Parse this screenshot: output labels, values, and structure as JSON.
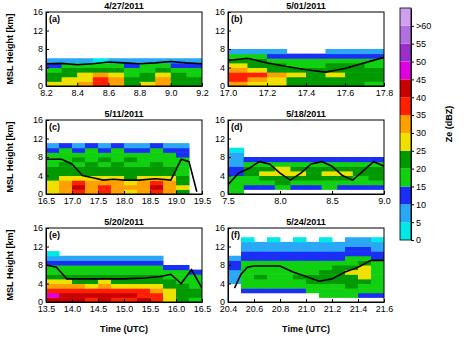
{
  "chart_data": [
    {
      "type": "heatmap",
      "title": "4/27/2011",
      "annotation": "(a)",
      "ylabel": "MSL Height [km]",
      "xlim": [
        8.2,
        9.2
      ],
      "xticks": [
        8.2,
        8.4,
        8.6,
        8.8,
        {
          "value": 9,
          "label": "9.0"
        },
        9.2
      ],
      "ylim": [
        0,
        16
      ],
      "yticks": [
        0,
        4,
        8,
        12,
        16
      ],
      "x": [
        8.25,
        8.35,
        8.45,
        8.55,
        8.65,
        8.75,
        8.85,
        8.95,
        9.05,
        9.15
      ],
      "y": [
        0.5,
        1.5,
        2.5,
        3.5,
        4.5,
        5.5
      ],
      "values": [
        [
          25,
          28,
          30,
          35,
          32,
          22,
          25,
          30,
          24,
          22
        ],
        [
          22,
          25,
          28,
          38,
          33,
          20,
          22,
          32,
          22,
          20
        ],
        [
          20,
          22,
          25,
          30,
          28,
          18,
          20,
          25,
          20,
          18
        ],
        [
          18,
          20,
          22,
          22,
          20,
          16,
          18,
          20,
          18,
          17
        ],
        [
          12,
          15,
          18,
          18,
          15,
          12,
          15,
          16,
          14,
          12
        ],
        [
          5,
          8,
          6,
          4,
          5,
          6,
          5,
          7,
          8,
          6
        ]
      ],
      "series": [
        {
          "color": "#000000",
          "x": [
            8.2,
            8.3,
            8.4,
            8.5,
            8.6,
            8.7,
            8.8,
            8.9,
            9.0,
            9.1,
            9.2
          ],
          "values": [
            4.8,
            4.9,
            4.6,
            4.8,
            5.2,
            5.0,
            4.8,
            5.0,
            5.3,
            5.0,
            4.8
          ]
        }
      ]
    },
    {
      "type": "heatmap",
      "title": "5/01/2011",
      "annotation": "(b)",
      "xlim": [
        17.0,
        17.8
      ],
      "xticks": [
        {
          "value": 17,
          "label": "17.0"
        },
        17.2,
        17.4,
        17.6,
        17.8
      ],
      "ylim": [
        0,
        16
      ],
      "yticks": [
        0,
        4,
        8,
        12,
        16
      ],
      "x": [
        17.05,
        17.15,
        17.25,
        17.35,
        17.45,
        17.55,
        17.65,
        17.75
      ],
      "y": [
        0.5,
        1.5,
        2.5,
        3.5,
        4.5,
        5.5,
        6.5,
        7.5
      ],
      "values": [
        [
          30,
          28,
          25,
          22,
          20,
          22,
          20,
          18
        ],
        [
          35,
          32,
          28,
          22,
          20,
          22,
          22,
          20
        ],
        [
          38,
          35,
          30,
          25,
          22,
          25,
          24,
          22
        ],
        [
          30,
          28,
          22,
          20,
          20,
          22,
          22,
          20
        ],
        [
          25,
          22,
          20,
          18,
          18,
          20,
          20,
          18
        ],
        [
          20,
          20,
          18,
          15,
          15,
          16,
          18,
          15
        ],
        [
          15,
          15,
          12,
          10,
          10,
          12,
          14,
          12
        ],
        [
          8,
          6,
          5,
          null,
          null,
          5,
          8,
          6
        ]
      ],
      "series": [
        {
          "color": "#000000",
          "x": [
            17.0,
            17.1,
            17.2,
            17.3,
            17.4,
            17.5,
            17.6,
            17.7,
            17.8
          ],
          "values": [
            5.5,
            6.0,
            5.0,
            4.2,
            3.5,
            3.0,
            3.8,
            5.0,
            6.2
          ]
        }
      ]
    },
    {
      "type": "heatmap",
      "title": "5/11/2011",
      "annotation": "(c)",
      "ylabel": "MSL Height [km]",
      "xlim": [
        16.5,
        19.5
      ],
      "xticks": [
        16.5,
        {
          "value": 17,
          "label": "17.0"
        },
        17.5,
        {
          "value": 18,
          "label": "18.0"
        },
        18.5,
        {
          "value": 19,
          "label": "19.0"
        },
        19.5
      ],
      "ylim": [
        0,
        16
      ],
      "yticks": [
        0,
        4,
        8,
        12,
        16
      ],
      "x": [
        16.625,
        16.875,
        17.125,
        17.375,
        17.625,
        17.875,
        18.125,
        18.375,
        18.625,
        18.875,
        19.125,
        19.375
      ],
      "y": [
        0.5,
        1.5,
        2.5,
        3.5,
        4.5,
        5.5,
        6.5,
        7.5,
        8.5,
        9.5,
        10.5
      ],
      "values": [
        [
          25,
          30,
          38,
          30,
          35,
          30,
          28,
          30,
          38,
          30,
          22,
          null
        ],
        [
          28,
          32,
          40,
          32,
          38,
          32,
          30,
          33,
          40,
          32,
          25,
          null
        ],
        [
          25,
          30,
          35,
          30,
          33,
          30,
          28,
          30,
          35,
          30,
          22,
          null
        ],
        [
          22,
          25,
          28,
          25,
          25,
          25,
          24,
          25,
          28,
          25,
          20,
          null
        ],
        [
          20,
          22,
          22,
          22,
          22,
          22,
          22,
          22,
          22,
          22,
          18,
          null
        ],
        [
          20,
          20,
          20,
          20,
          20,
          20,
          20,
          20,
          20,
          20,
          18,
          null
        ],
        [
          18,
          20,
          18,
          20,
          18,
          20,
          18,
          18,
          20,
          18,
          15,
          null
        ],
        [
          18,
          18,
          20,
          18,
          20,
          18,
          20,
          18,
          18,
          18,
          15,
          null
        ],
        [
          15,
          18,
          15,
          18,
          15,
          18,
          15,
          15,
          18,
          15,
          12,
          null
        ],
        [
          12,
          15,
          12,
          15,
          12,
          15,
          12,
          12,
          15,
          12,
          10,
          null
        ],
        [
          8,
          10,
          5,
          10,
          8,
          10,
          8,
          6,
          10,
          8,
          5,
          null
        ]
      ],
      "series": [
        {
          "color": "#000000",
          "x": [
            16.5,
            16.8,
            17.0,
            17.2,
            17.4,
            17.6,
            17.8,
            18.0,
            18.3,
            18.6,
            18.9,
            19.1,
            19.25,
            19.4
          ],
          "values": [
            7.5,
            7.5,
            6.5,
            4.0,
            3.5,
            3.0,
            3.2,
            3.0,
            3.0,
            3.3,
            3.0,
            7.5,
            7.0,
            0.5
          ]
        }
      ]
    },
    {
      "type": "heatmap",
      "title": "5/18/2011",
      "annotation": "(d)",
      "xlim": [
        7.5,
        9.0
      ],
      "xticks": [
        7.5,
        {
          "value": 8,
          "label": "8.0"
        },
        8.5,
        {
          "value": 9,
          "label": "9.0"
        }
      ],
      "ylim": [
        0,
        16
      ],
      "yticks": [
        0,
        4,
        8,
        12,
        16
      ],
      "x": [
        7.575,
        7.725,
        7.875,
        8.025,
        8.175,
        8.325,
        8.475,
        8.625,
        8.775,
        8.925
      ],
      "y": [
        0.5,
        1.5,
        2.5,
        3.5,
        4.5,
        5.5,
        6.5,
        7.5,
        8.5,
        9.5
      ],
      "values": [
        [
          15,
          null,
          null,
          null,
          null,
          null,
          null,
          null,
          null,
          null
        ],
        [
          18,
          10,
          12,
          15,
          12,
          10,
          15,
          12,
          10,
          12
        ],
        [
          18,
          15,
          18,
          20,
          18,
          15,
          18,
          18,
          15,
          18
        ],
        [
          15,
          18,
          20,
          22,
          22,
          20,
          22,
          20,
          18,
          20
        ],
        [
          12,
          20,
          25,
          28,
          25,
          22,
          25,
          25,
          20,
          22
        ],
        [
          10,
          20,
          22,
          25,
          24,
          22,
          24,
          22,
          20,
          20
        ],
        [
          8,
          15,
          18,
          18,
          18,
          15,
          18,
          18,
          15,
          15
        ],
        [
          5,
          10,
          12,
          12,
          12,
          10,
          12,
          12,
          10,
          10
        ],
        [
          5,
          null,
          null,
          null,
          null,
          null,
          null,
          null,
          null,
          null
        ],
        [
          3,
          null,
          null,
          null,
          null,
          null,
          null,
          null,
          null,
          null
        ]
      ],
      "series": [
        {
          "color": "#000000",
          "x": [
            7.5,
            7.6,
            7.7,
            7.8,
            7.9,
            8.0,
            8.1,
            8.2,
            8.3,
            8.4,
            8.5,
            8.6,
            8.7,
            8.8,
            8.9,
            9.0
          ],
          "values": [
            2.0,
            4.5,
            5.5,
            7.0,
            6.5,
            4.5,
            3.0,
            4.5,
            6.5,
            7.0,
            6.0,
            4.0,
            3.0,
            5.0,
            7.0,
            6.0
          ]
        }
      ]
    },
    {
      "type": "heatmap",
      "title": "5/20/2011",
      "annotation": "(e)",
      "ylabel": "MSL Height [km]",
      "xlabel": "Time (UTC)",
      "xlim": [
        13.5,
        16.5
      ],
      "xticks": [
        13.5,
        {
          "value": 14,
          "label": "14.0"
        },
        14.5,
        {
          "value": 15,
          "label": "15.0"
        },
        15.5,
        {
          "value": 16,
          "label": "16.0"
        },
        16.5
      ],
      "ylim": [
        0,
        16
      ],
      "yticks": [
        0,
        4,
        8,
        12,
        16
      ],
      "x": [
        13.625,
        13.875,
        14.125,
        14.375,
        14.625,
        14.875,
        15.125,
        15.375,
        15.625,
        15.875,
        16.125,
        16.375
      ],
      "y": [
        0.5,
        1.5,
        2.5,
        3.5,
        4.5,
        5.5,
        6.5,
        7.5,
        8.5,
        9.5,
        10.5
      ],
      "values": [
        [
          40,
          42,
          40,
          38,
          40,
          38,
          38,
          40,
          38,
          25,
          20,
          18
        ],
        [
          45,
          42,
          40,
          40,
          42,
          40,
          40,
          38,
          36,
          28,
          22,
          20
        ],
        [
          38,
          38,
          36,
          35,
          36,
          35,
          35,
          35,
          32,
          25,
          22,
          20
        ],
        [
          30,
          30,
          30,
          28,
          30,
          28,
          28,
          28,
          26,
          22,
          20,
          18
        ],
        [
          25,
          25,
          24,
          24,
          25,
          24,
          24,
          24,
          22,
          20,
          18,
          18
        ],
        [
          20,
          20,
          20,
          20,
          20,
          20,
          20,
          20,
          20,
          18,
          18,
          15
        ],
        [
          18,
          18,
          18,
          18,
          18,
          18,
          18,
          18,
          18,
          15,
          15,
          12
        ],
        [
          15,
          15,
          15,
          15,
          15,
          15,
          15,
          15,
          15,
          12,
          10,
          null
        ],
        [
          12,
          12,
          12,
          12,
          12,
          12,
          12,
          12,
          10,
          null,
          null,
          null
        ],
        [
          8,
          8,
          8,
          8,
          8,
          8,
          8,
          6,
          5,
          null,
          null,
          null
        ],
        [
          3,
          null,
          null,
          null,
          null,
          null,
          null,
          null,
          null,
          null,
          null,
          null
        ]
      ],
      "series": [
        {
          "color": "#000000",
          "x": [
            13.5,
            13.7,
            13.9,
            14.1,
            14.5,
            15.0,
            15.4,
            15.7,
            15.9,
            16.1,
            16.3,
            16.5
          ],
          "values": [
            8.0,
            7.5,
            5.0,
            5.0,
            5.0,
            5.0,
            5.2,
            5.5,
            6.0,
            4.0,
            7.0,
            3.0
          ]
        }
      ]
    },
    {
      "type": "heatmap",
      "title": "5/24/2011",
      "annotation": "(f)",
      "xlabel": "Time (UTC)",
      "xlim": [
        20.4,
        21.6
      ],
      "xticks": [
        20.4,
        20.6,
        20.8,
        {
          "value": 21,
          "label": "21.0"
        },
        21.2,
        21.4,
        21.6
      ],
      "ylim": [
        0,
        16
      ],
      "yticks": [
        0,
        4,
        8,
        12,
        16
      ],
      "x": [
        20.45,
        20.55,
        20.65,
        20.75,
        20.85,
        20.95,
        21.05,
        21.15,
        21.25,
        21.35,
        21.45,
        21.55
      ],
      "y": [
        0.5,
        1.5,
        2.5,
        3.5,
        4.5,
        5.5,
        6.5,
        7.5,
        8.5,
        9.5,
        10.5,
        11.5,
        12.5,
        13.5
      ],
      "values": [
        [
          null,
          null,
          null,
          null,
          null,
          null,
          null,
          null,
          null,
          null,
          null,
          null
        ],
        [
          null,
          null,
          null,
          null,
          null,
          null,
          null,
          15,
          15,
          15,
          12,
          12
        ],
        [
          null,
          12,
          12,
          12,
          12,
          12,
          15,
          18,
          18,
          18,
          15,
          15
        ],
        [
          null,
          15,
          15,
          15,
          15,
          15,
          18,
          18,
          18,
          20,
          18,
          15
        ],
        [
          5,
          18,
          18,
          18,
          18,
          18,
          20,
          20,
          20,
          22,
          20,
          18
        ],
        [
          8,
          18,
          20,
          18,
          18,
          20,
          20,
          20,
          22,
          22,
          25,
          18
        ],
        [
          8,
          18,
          18,
          18,
          18,
          18,
          18,
          20,
          20,
          25,
          28,
          18
        ],
        [
          10,
          18,
          18,
          18,
          18,
          18,
          18,
          18,
          20,
          22,
          25,
          18
        ],
        [
          10,
          15,
          15,
          15,
          15,
          15,
          15,
          15,
          15,
          18,
          20,
          15
        ],
        [
          8,
          12,
          12,
          12,
          12,
          12,
          12,
          12,
          12,
          15,
          15,
          12
        ],
        [
          null,
          10,
          10,
          10,
          10,
          10,
          10,
          10,
          10,
          12,
          12,
          10
        ],
        [
          null,
          8,
          8,
          8,
          8,
          8,
          8,
          8,
          8,
          10,
          10,
          8
        ],
        [
          null,
          5,
          5,
          5,
          5,
          5,
          5,
          5,
          5,
          8,
          8,
          5
        ],
        [
          null,
          3,
          null,
          3,
          null,
          3,
          null,
          3,
          null,
          5,
          5,
          3
        ]
      ],
      "series": [
        {
          "color": "#000000",
          "x": [
            20.45,
            20.5,
            20.55,
            20.6,
            20.8,
            20.9,
            21.0,
            21.1,
            21.2,
            21.3,
            21.4,
            21.5,
            21.6
          ],
          "values": [
            3.0,
            6.0,
            7.5,
            7.8,
            7.8,
            6.5,
            5.5,
            4.5,
            5.0,
            6.5,
            7.5,
            9.0,
            9.0
          ]
        }
      ]
    },
    {
      "type": "colorbar",
      "title": "Ze (dBZ)",
      "levels": [
        0,
        5,
        10,
        15,
        20,
        25,
        30,
        35,
        40,
        45,
        50,
        55,
        60,
        65
      ],
      "colors": [
        "#00e8e8",
        "#2aa7f5",
        "#1a2ef5",
        "#10d010",
        "#009a00",
        "#f0e000",
        "#ffa000",
        "#ff2000",
        "#c80000",
        "#e000e0",
        "#9a30c8",
        "#b070e0",
        "#d0a0f0"
      ],
      "ylim": [
        0,
        65
      ],
      "yticks": [
        0,
        5,
        10,
        15,
        20,
        25,
        30,
        35,
        40,
        45,
        50,
        55,
        {
          "value": 60,
          "label": ">60"
        }
      ]
    }
  ]
}
